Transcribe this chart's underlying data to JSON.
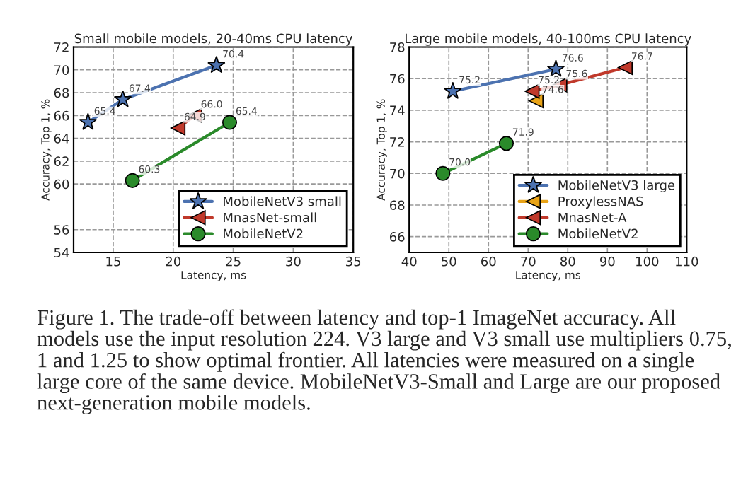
{
  "chart_data": [
    {
      "type": "line",
      "title": "Small mobile models, 20-40ms CPU latency",
      "xlabel": "Latency, ms",
      "ylabel": "Accuracy, Top 1, %",
      "xlim": [
        11.7,
        35
      ],
      "xticks": [
        15,
        20,
        25,
        30,
        35
      ],
      "ylim": [
        54,
        72
      ],
      "yticks": [
        54,
        56,
        60,
        62,
        64,
        66,
        68,
        70,
        72
      ],
      "grid": true,
      "legend": "bottom right",
      "line_style": "solid",
      "series": [
        {
          "name": "MobileNetV3 small",
          "color": "#4c72b0",
          "marker": "star",
          "x": [
            12.9,
            15.8,
            23.6
          ],
          "values": [
            65.4,
            67.4,
            70.4
          ],
          "value_labels": [
            "65.4",
            "67.4",
            "70.4"
          ]
        },
        {
          "name": "MnasNet-small",
          "color": "#c0392b",
          "marker": "triangle",
          "x": [
            20.4,
            21.8
          ],
          "values": [
            64.9,
            66.0
          ],
          "value_labels": [
            "64.9",
            "66.0"
          ]
        },
        {
          "name": "MobileNetV2",
          "color": "#2a8a2a",
          "marker": "circle",
          "x": [
            16.6,
            24.7
          ],
          "values": [
            60.3,
            65.4
          ],
          "value_labels": [
            "60.3",
            "65.4"
          ]
        }
      ],
      "annotations": [
        "Figure 1. The trade-off between latency and top-1 ImageNet accuracy. All models use the input resolution 224. V3 large and V3 small use multipliers 0.75, 1 and 1.25 to show optimal frontier. All latencies were measured on a single large core of the same device. MobileNetV3-Small and Large are our proposed next-generation mobile models."
      ]
    },
    {
      "type": "line",
      "title": "Large mobile models, 40-100ms CPU latency",
      "xlabel": "Latency, ms",
      "ylabel": "Accuracy, Top 1, %",
      "xlim": [
        40,
        110
      ],
      "xticks": [
        40,
        50,
        60,
        70,
        80,
        90,
        100,
        110
      ],
      "ylim": [
        65,
        78
      ],
      "yticks": [
        66,
        68,
        70,
        72,
        74,
        76,
        78
      ],
      "grid": true,
      "legend": "bottom right",
      "line_style": "solid",
      "series": [
        {
          "name": "MobileNetV3 large",
          "color": "#4c72b0",
          "marker": "star",
          "x": [
            51,
            77
          ],
          "values": [
            75.2,
            76.6
          ],
          "value_labels": [
            "75.2",
            "76.6"
          ]
        },
        {
          "name": "ProxylessNAS",
          "color": "#e8a317",
          "marker": "triangle",
          "x": [
            72
          ],
          "values": [
            74.6
          ],
          "value_labels": [
            "74.6"
          ]
        },
        {
          "name": "MnasNet-A",
          "color": "#c0392b",
          "marker": "triangle",
          "x": [
            71,
            78,
            94.5
          ],
          "values": [
            75.2,
            75.6,
            76.7
          ],
          "value_labels": [
            "75.2",
            "75.6",
            "76.7"
          ]
        },
        {
          "name": "MobileNetV2",
          "color": "#2a8a2a",
          "marker": "circle",
          "x": [
            48.5,
            64.5
          ],
          "values": [
            70.0,
            71.9
          ],
          "value_labels": [
            "70.0",
            "71.9"
          ]
        }
      ]
    }
  ]
}
